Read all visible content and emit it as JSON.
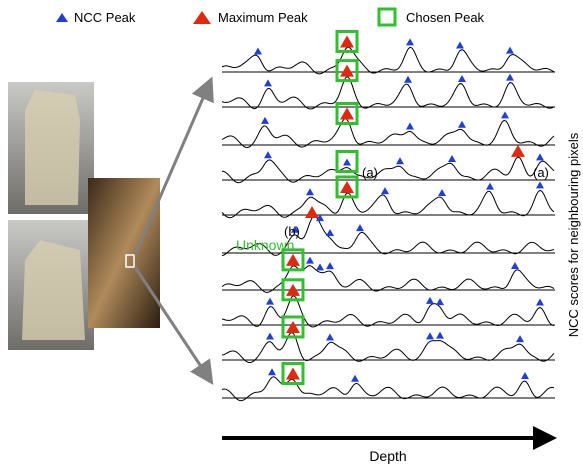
{
  "legend": {
    "ncc_peak": "NCC Peak",
    "maximum_peak": "Maximum Peak",
    "chosen_peak": "Chosen Peak"
  },
  "annotations": {
    "a_first": "(a)",
    "a_second": "(a)",
    "b": "(b)",
    "unknown": "Unknown"
  },
  "y_axis_label": "NCC scores for neighbouring pixels",
  "x_axis_label": "Depth"
}
